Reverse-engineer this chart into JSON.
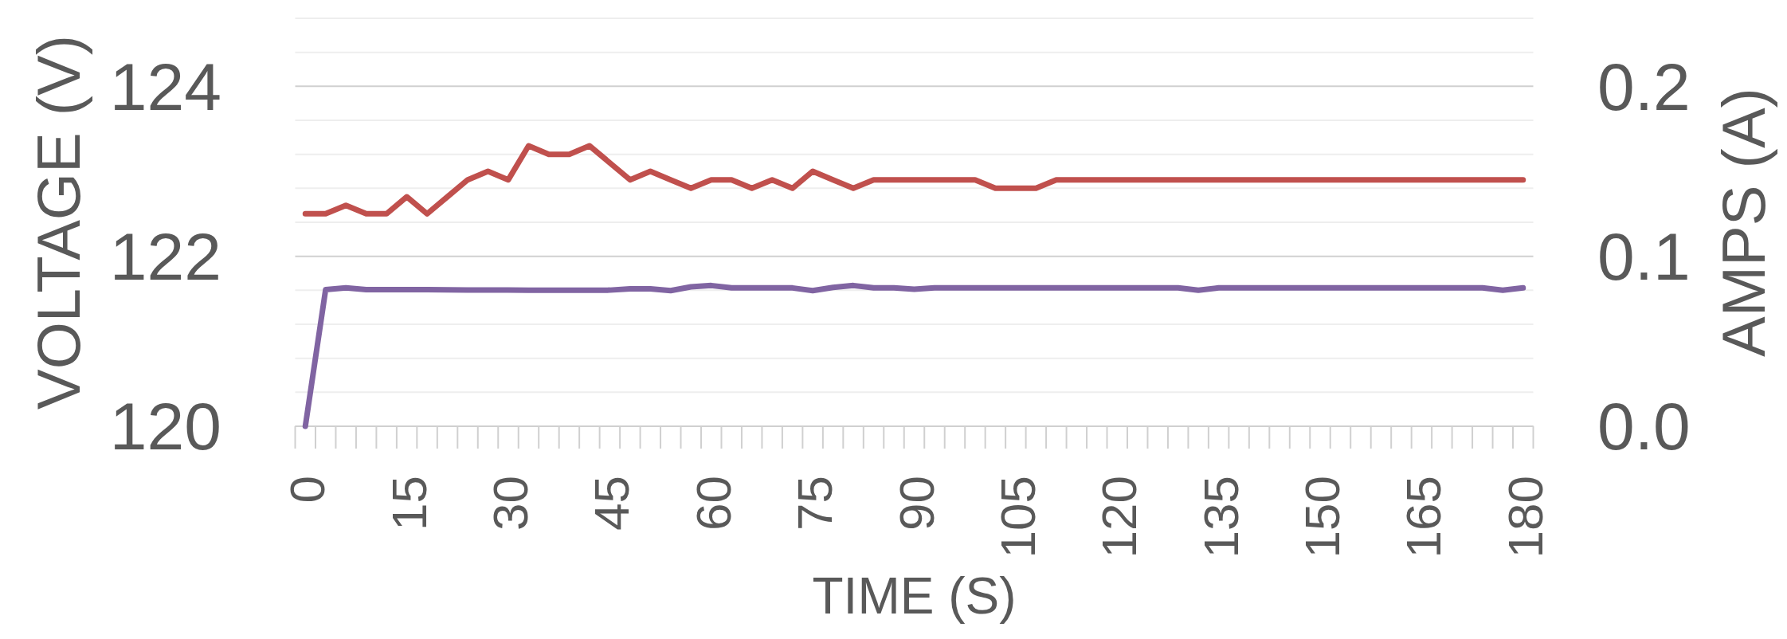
{
  "chart_data": {
    "type": "line",
    "xlabel": "TIME (S)",
    "ylabel": "VOLTAGE (V)",
    "y2label": "AMPS (A)",
    "categories": [
      "0",
      null,
      null,
      null,
      null,
      "15",
      null,
      null,
      null,
      null,
      "30",
      null,
      null,
      null,
      null,
      "45",
      null,
      null,
      null,
      null,
      "60",
      null,
      null,
      null,
      null,
      "75",
      null,
      null,
      null,
      null,
      "90",
      null,
      null,
      null,
      null,
      "105",
      null,
      null,
      null,
      null,
      "120",
      null,
      null,
      null,
      null,
      "135",
      null,
      null,
      null,
      null,
      "150",
      null,
      null,
      null,
      null,
      "165",
      null,
      null,
      null,
      null,
      "180"
    ],
    "series": [
      {
        "color": "#c0504d",
        "values": [
          122.5,
          122.5,
          122.6,
          122.5,
          122.5,
          122.7,
          122.5,
          122.7,
          122.9,
          123.0,
          122.9,
          123.3,
          123.2,
          123.2,
          123.3,
          123.1,
          122.9,
          123.0,
          122.9,
          122.8,
          122.9,
          122.9,
          122.8,
          122.9,
          122.8,
          123.0,
          122.9,
          122.8,
          122.9,
          122.9,
          122.9,
          122.9,
          122.9,
          122.9,
          122.8,
          122.8,
          122.8,
          122.9,
          122.9,
          122.9,
          122.9,
          122.9,
          122.9,
          122.9,
          122.9,
          122.9,
          122.9,
          122.9,
          122.9,
          122.9,
          122.9,
          122.9,
          122.9,
          122.9,
          122.9,
          122.9,
          122.9,
          122.9,
          122.9,
          122.9,
          122.9
        ]
      },
      {
        "color": "#8064a2",
        "axis": "y2",
        "values": [
          0,
          0.0804,
          0.0814,
          0.0804,
          0.0804,
          0.0804,
          0.0804,
          0.0803,
          0.0802,
          0.0802,
          0.0801,
          0.08,
          0.08,
          0.08,
          0.08,
          0.0801,
          0.0809,
          0.0809,
          0.0798,
          0.082,
          0.0828,
          0.0814,
          0.0814,
          0.0814,
          0.0814,
          0.0798,
          0.0817,
          0.0828,
          0.0814,
          0.0814,
          0.0806,
          0.0814,
          0.0814,
          0.0814,
          0.0814,
          0.0814,
          0.0814,
          0.0814,
          0.0814,
          0.0814,
          0.0814,
          0.0814,
          0.0814,
          0.0814,
          0.08,
          0.0814,
          0.0814,
          0.0814,
          0.0814,
          0.0814,
          0.0814,
          0.0814,
          0.0814,
          0.0814,
          0.0814,
          0.0814,
          0.0814,
          0.0814,
          0.0814,
          0.08,
          0.0814
        ]
      }
    ],
    "ylim": [
      120,
      124.8
    ],
    "yticks": [
      120,
      {
        "value": 120.4,
        "label": null
      },
      {
        "value": 120.8,
        "label": null
      },
      {
        "value": 121.2,
        "label": null
      },
      {
        "value": 121.6,
        "label": null
      },
      122,
      {
        "value": 122.4,
        "label": null
      },
      {
        "value": 122.8,
        "label": null
      },
      {
        "value": 123.2,
        "label": null
      },
      {
        "value": 123.6,
        "label": null
      },
      124,
      {
        "value": 124.4,
        "label": null
      },
      {
        "value": 124.8,
        "label": null
      }
    ],
    "y2lim": [
      0,
      0.24
    ],
    "y2ticks": [
      {
        "value": 0,
        "label": "0.0"
      },
      0.1,
      0.2
    ],
    "grid": "y",
    "line_style": "solid"
  }
}
